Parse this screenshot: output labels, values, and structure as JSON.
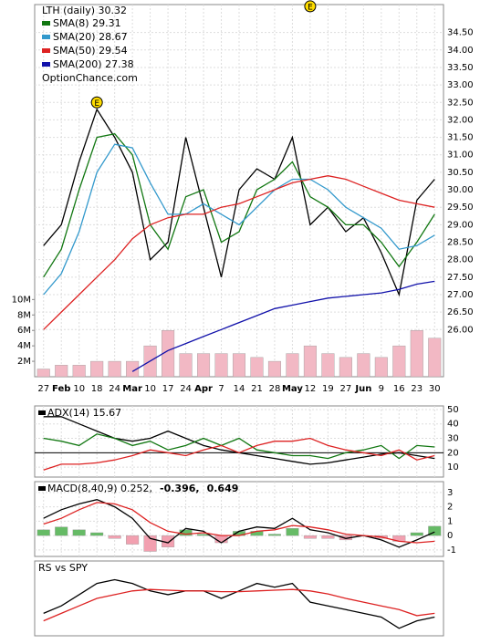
{
  "chart_data": [
    {
      "type": "line",
      "title": "LTH (daily) 30.32",
      "subtitle": "OptionChance.com",
      "categories": [
        "27",
        "Feb",
        "10",
        "18",
        "24",
        "Mar",
        "10",
        "17",
        "24",
        "Apr",
        "7",
        "14",
        "21",
        "28",
        "May",
        "12",
        "19",
        "27",
        "Jun",
        "9",
        "16",
        "23",
        "30"
      ],
      "series": [
        {
          "color": "#000000",
          "values": [
            28.4,
            29.0,
            30.8,
            32.3,
            31.5,
            30.5,
            28.0,
            28.5,
            31.5,
            29.5,
            27.5,
            30.0,
            30.6,
            30.3,
            31.5,
            29.0,
            29.5,
            28.8,
            29.2,
            28.2,
            27.0,
            29.7,
            30.3
          ]
        },
        {
          "name": "SMA(8) 29.31",
          "color": "#117711",
          "values": [
            27.5,
            28.3,
            30.0,
            31.5,
            31.6,
            31.0,
            29.0,
            28.3,
            29.8,
            30.0,
            28.5,
            28.8,
            30.0,
            30.3,
            30.8,
            29.8,
            29.5,
            29.0,
            29.0,
            28.5,
            27.8,
            28.5,
            29.3
          ]
        },
        {
          "name": "SMA(20) 28.67",
          "color": "#3399cc",
          "values": [
            27.0,
            27.6,
            28.8,
            30.5,
            31.3,
            31.2,
            30.2,
            29.3,
            29.3,
            29.6,
            29.3,
            29.0,
            29.5,
            30.0,
            30.3,
            30.3,
            30.0,
            29.5,
            29.2,
            28.9,
            28.3,
            28.4,
            28.7
          ]
        },
        {
          "name": "SMA(50) 29.54",
          "color": "#dd2222",
          "values": [
            26.0,
            26.5,
            27.0,
            27.5,
            28.0,
            28.6,
            29.0,
            29.2,
            29.3,
            29.3,
            29.5,
            29.6,
            29.8,
            30.0,
            30.2,
            30.3,
            30.4,
            30.3,
            30.1,
            29.9,
            29.7,
            29.6,
            29.5
          ]
        },
        {
          "name": "SMA(200) 27.38",
          "color": "#1111aa",
          "values": [
            null,
            null,
            null,
            null,
            null,
            24.8,
            25.1,
            25.4,
            25.6,
            25.8,
            26.0,
            26.2,
            26.4,
            26.6,
            26.7,
            26.8,
            26.9,
            26.95,
            27.0,
            27.05,
            27.15,
            27.3,
            27.38
          ]
        },
        {
          "type": "bar",
          "axis": "y2",
          "color": "#f2b8c4",
          "values": [
            1,
            1.5,
            1.5,
            2,
            2,
            2,
            4,
            6,
            3,
            3,
            3,
            3,
            2.5,
            2,
            3,
            4,
            3,
            2.5,
            3,
            2.5,
            4,
            6,
            5
          ]
        }
      ],
      "ylim": [
        24.65,
        35.3
      ],
      "yticks": [
        {
          "value": 26,
          "label": "26.00"
        },
        {
          "value": 26.5,
          "label": "26.50"
        },
        {
          "value": 27,
          "label": "27.00"
        },
        {
          "value": 27.5,
          "label": "27.50"
        },
        {
          "value": 28,
          "label": "28.00"
        },
        {
          "value": 28.5,
          "label": "28.50"
        },
        {
          "value": 29,
          "label": "29.00"
        },
        {
          "value": 29.5,
          "label": "29.50"
        },
        {
          "value": 30,
          "label": "30.00"
        },
        {
          "value": 30.5,
          "label": "30.50"
        },
        {
          "value": 31,
          "label": "31.00"
        },
        {
          "value": 31.5,
          "label": "31.50"
        },
        {
          "value": 32,
          "label": "32.00"
        },
        {
          "value": 32.5,
          "label": "32.50"
        },
        {
          "value": 33,
          "label": "33.00"
        },
        {
          "value": 33.5,
          "label": "33.50"
        },
        {
          "value": 34,
          "label": "34.00"
        },
        {
          "value": 34.5,
          "label": "34.50"
        }
      ],
      "y2lim": [
        0,
        48.2
      ],
      "y2ticks": [
        {
          "value": 2,
          "label": "2M"
        },
        {
          "value": 4,
          "label": "4M"
        },
        {
          "value": 6,
          "label": "6M"
        },
        {
          "value": 8,
          "label": "8M"
        },
        {
          "value": 10,
          "label": "10M"
        }
      ],
      "annotations": [
        {
          "label": "E",
          "index": 3,
          "y": 32.5
        },
        {
          "label": "E",
          "index": 15,
          "y": 35.25
        }
      ],
      "grid": true
    },
    {
      "type": "line",
      "series": [
        {
          "name": "ADX(14) 15.67",
          "color": "#000000",
          "values": [
            45,
            45,
            40,
            35,
            30,
            28,
            30,
            35,
            30,
            25,
            22,
            20,
            18,
            16,
            14,
            12,
            13,
            15,
            17,
            19,
            20,
            18,
            16
          ]
        },
        {
          "color": "#117711",
          "values": [
            30,
            28,
            25,
            33,
            30,
            25,
            28,
            22,
            25,
            30,
            25,
            30,
            22,
            20,
            18,
            18,
            16,
            20,
            22,
            25,
            16,
            25,
            24
          ]
        },
        {
          "color": "#dd2222",
          "values": [
            8,
            12,
            12,
            13,
            15,
            18,
            22,
            20,
            18,
            22,
            25,
            20,
            25,
            28,
            28,
            30,
            25,
            22,
            20,
            18,
            22,
            15,
            18
          ]
        }
      ],
      "ylim": [
        3.1,
        52.5
      ],
      "yticks": [
        10,
        20,
        30,
        40,
        50
      ],
      "grid": true
    },
    {
      "type": "line",
      "series": [
        {
          "name": "MACD(8,40,9) 0.252,",
          "color": "#000000",
          "values": [
            1.2,
            1.8,
            2.2,
            2.5,
            2.0,
            1.2,
            -0.2,
            -0.5,
            0.5,
            0.3,
            -0.5,
            0.3,
            0.6,
            0.5,
            1.2,
            0.4,
            0.2,
            -0.2,
            0,
            -0.3,
            -0.8,
            -0.3,
            0.25
          ]
        },
        {
          "name": "-0.396,",
          "color": "#dd2222",
          "values": [
            0.8,
            1.2,
            1.8,
            2.3,
            2.2,
            1.8,
            0.9,
            0.3,
            0.1,
            0.2,
            0.0,
            0.0,
            0.3,
            0.4,
            0.7,
            0.6,
            0.4,
            0.1,
            0,
            -0.1,
            -0.4,
            -0.5,
            -0.4
          ]
        },
        {
          "name": "0.649",
          "type": "bar",
          "color": "#66bb66",
          "negative_color": "#f2a0b0",
          "label_color": "#1f5fbf",
          "values": [
            0.4,
            0.6,
            0.4,
            0.2,
            -0.2,
            -0.6,
            -1.1,
            -0.8,
            0.4,
            0.1,
            -0.5,
            0.3,
            0.3,
            0.1,
            0.5,
            -0.2,
            -0.2,
            -0.3,
            0,
            -0.2,
            -0.4,
            0.2,
            0.65
          ]
        }
      ],
      "ylim": [
        -1.45,
        3.75
      ],
      "yticks": [
        -1,
        0,
        1,
        2,
        3
      ],
      "grid": true
    },
    {
      "type": "line",
      "title": "RS vs SPY",
      "series": [
        {
          "color": "#000000",
          "values": [
            3,
            4,
            5.5,
            7,
            7.5,
            7,
            6,
            5.5,
            6,
            6,
            5,
            6,
            7,
            6.5,
            7,
            4.5,
            4,
            3.5,
            3,
            2.5,
            1,
            2,
            2.5
          ]
        },
        {
          "color": "#dd2222",
          "values": [
            2,
            3,
            4,
            5,
            5.5,
            6,
            6.2,
            6.1,
            6,
            6,
            5.9,
            5.9,
            6,
            6.1,
            6.2,
            6,
            5.6,
            5,
            4.5,
            4,
            3.5,
            2.7,
            3
          ]
        }
      ],
      "ylim": [
        0,
        10
      ],
      "grid": false
    }
  ]
}
